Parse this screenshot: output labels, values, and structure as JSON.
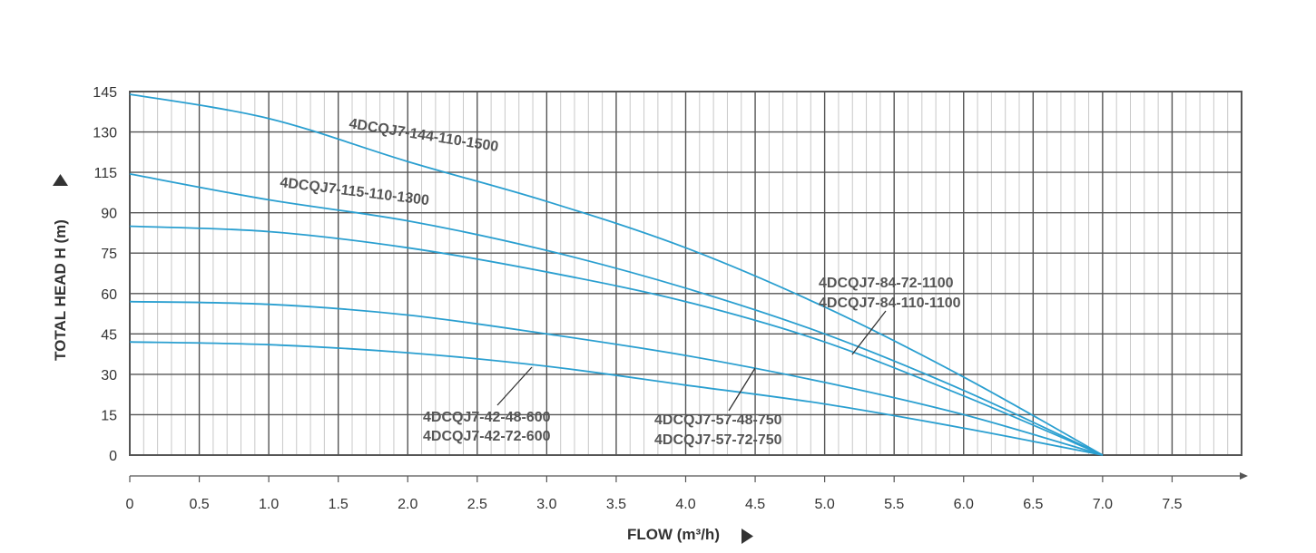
{
  "chart_data": {
    "type": "line",
    "xlabel": "FLOW (m³/h)",
    "ylabel": "TOTAL HEAD H (m)",
    "xlim": [
      0,
      8
    ],
    "ylim": [
      0,
      145
    ],
    "x_ticks": [
      "0",
      "0.5",
      "1.0",
      "1.5",
      "2.0",
      "2.5",
      "3.0",
      "3.5",
      "4.0",
      "4.5",
      "5.0",
      "5.5",
      "6.0",
      "6.5",
      "7.0",
      "7.5"
    ],
    "y_ticks": [
      "0",
      "15",
      "30",
      "45",
      "60",
      "75",
      "90",
      "115",
      "130",
      "145"
    ],
    "grid": true,
    "series": [
      {
        "name": "4DCQJ7-144-110-1500",
        "x": [
          0,
          1,
          2,
          3,
          4,
          5,
          6,
          7
        ],
        "y": [
          144,
          135,
          119,
          97,
          77,
          55,
          29,
          0
        ]
      },
      {
        "name": "4DCQJ7-115-110-1300",
        "x": [
          0,
          1,
          2,
          3,
          4,
          5,
          6,
          7
        ],
        "y": [
          114,
          98,
          87,
          76,
          62,
          45,
          24,
          0
        ]
      },
      {
        "name": "4DCQJ7-84-110-1100",
        "x": [
          0,
          1,
          2,
          3,
          4,
          5,
          6,
          7
        ],
        "y": [
          85,
          83,
          77,
          68,
          57,
          42,
          22,
          0
        ]
      },
      {
        "name": "4DCQJ7-57-72-750",
        "x": [
          0,
          1,
          2,
          3,
          4,
          5,
          6,
          7
        ],
        "y": [
          57,
          56,
          52,
          45,
          37,
          27,
          15,
          0
        ]
      },
      {
        "name": "4DCQJ7-42-72-600",
        "x": [
          0,
          1,
          2,
          3,
          4,
          5,
          6,
          7
        ],
        "y": [
          42,
          41,
          38,
          33,
          26,
          19,
          10,
          0
        ]
      }
    ],
    "labels": [
      {
        "text": "4DCQJ7-144-110-1500"
      },
      {
        "text": "4DCQJ7-115-110-1300"
      },
      {
        "text": "4DCQJ7-84-72-1100"
      },
      {
        "text": "4DCQJ7-84-110-1100"
      },
      {
        "text": "4DCQJ7-42-48-600"
      },
      {
        "text": "4DCQJ7-42-72-600"
      },
      {
        "text": "4DCQJ7-57-48-750"
      },
      {
        "text": "4DCQJ7-57-72-750"
      }
    ],
    "colors": {
      "curve": "#2a9fd0",
      "grid_major": "#555555",
      "grid_minor": "#c8c8c8",
      "text": "#333333"
    }
  }
}
